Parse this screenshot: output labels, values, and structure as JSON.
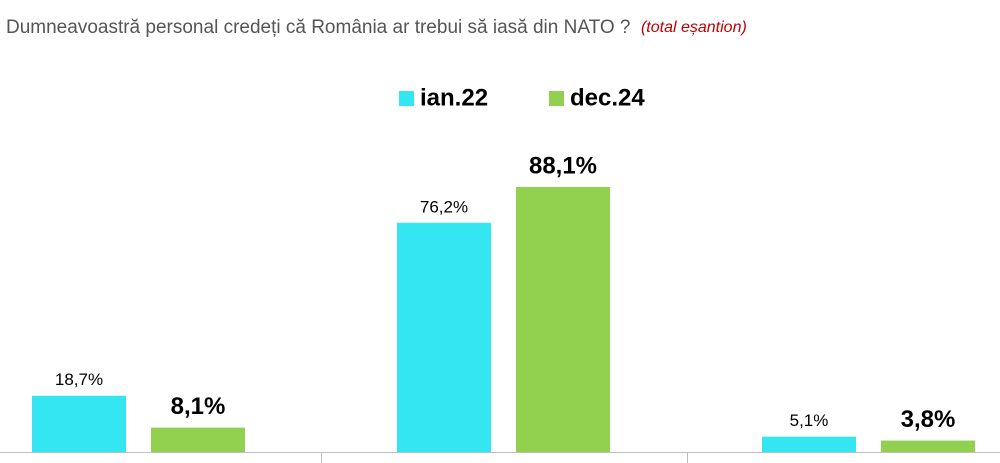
{
  "chart_data": {
    "type": "bar",
    "title": "Dumneavoastră personal credeți că România ar trebui să iasă din NATO ?",
    "subtitle": "(total eșantion)",
    "categories": [
      null,
      null,
      null
    ],
    "series": [
      {
        "name": "ian.22",
        "color": "#33e6f2",
        "values": [
          18.7,
          76.2,
          5.1
        ],
        "value_labels": [
          "18,7%",
          "76,2%",
          "5,1%"
        ]
      },
      {
        "name": "dec.24",
        "color": "#92d050",
        "values": [
          8.1,
          88.1,
          3.8
        ],
        "value_labels": [
          "8,1%",
          "88,1%",
          "3,8%"
        ]
      }
    ]
  }
}
